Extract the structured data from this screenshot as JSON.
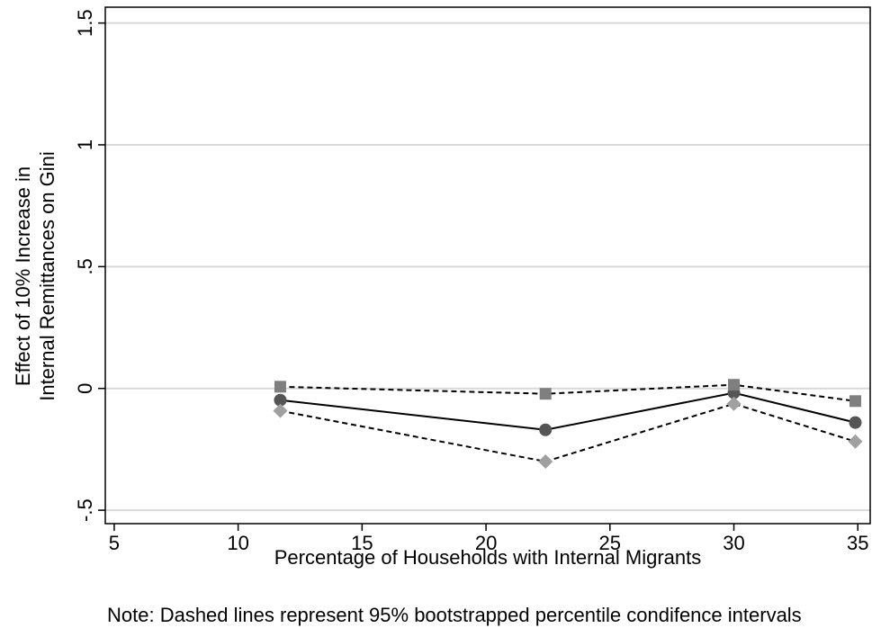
{
  "chart_data": {
    "type": "line",
    "xlabel": "Percentage of Households with Internal Migrants",
    "ylabel": [
      "Effect of 10% Increase in",
      "Internal Remittances on Gini"
    ],
    "note": "Note: Dashed lines represent 95% bootstrapped percentile condifence intervals",
    "x": [
      11.7,
      22.4,
      30.0,
      34.9
    ],
    "series": [
      {
        "color": "#555555",
        "marker": "circle",
        "line_style": "solid",
        "values": [
          -0.048,
          -0.17,
          -0.018,
          -0.14
        ]
      },
      {
        "color": "#7f7f7f",
        "marker": "square",
        "line_style": "dashed",
        "values": [
          0.007,
          -0.022,
          0.015,
          -0.052
        ]
      },
      {
        "color": "#a0a0a0",
        "marker": "diamond",
        "line_style": "dashed",
        "values": [
          -0.092,
          -0.3,
          -0.063,
          -0.218
        ]
      }
    ],
    "xlim": [
      4.64,
      35.5
    ],
    "xticks": [
      5,
      10,
      15,
      20,
      25,
      30,
      35
    ],
    "ylim": [
      -0.555,
      1.565
    ],
    "yticks": [
      {
        "value": -0.5,
        "label": "-.5"
      },
      0,
      {
        "value": 0.5,
        "label": ".5"
      },
      1,
      1.5
    ],
    "grid": true
  }
}
